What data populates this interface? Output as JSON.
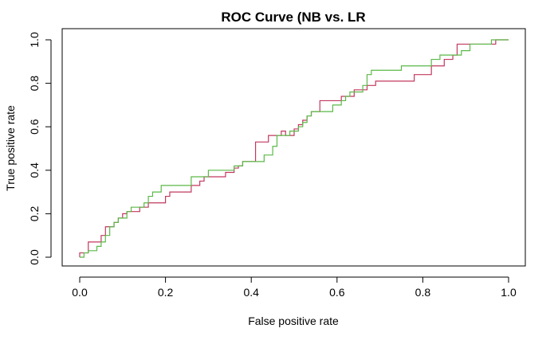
{
  "chart_data": {
    "type": "line",
    "title": "ROC Curve (NB vs. LR",
    "xlabel": "False positive rate",
    "ylabel": "True positive rate",
    "xlim": [
      0,
      1
    ],
    "ylim": [
      0,
      1
    ],
    "xticks": [
      0.0,
      0.2,
      0.4,
      0.6,
      0.8,
      1.0
    ],
    "xtick_labels": [
      "0.0",
      "0.2",
      "0.4",
      "0.6",
      "0.8",
      "1.0"
    ],
    "yticks": [
      0.0,
      0.2,
      0.4,
      0.6,
      0.8,
      1.0
    ],
    "ytick_labels": [
      "0.0",
      "0.2",
      "0.4",
      "0.6",
      "0.8",
      "1.0"
    ],
    "grid": false,
    "legend": "none",
    "series": [
      {
        "color": "#c2385f",
        "points": [
          [
            0.0,
            0.0
          ],
          [
            0.0,
            0.02
          ],
          [
            0.02,
            0.02
          ],
          [
            0.02,
            0.07
          ],
          [
            0.05,
            0.07
          ],
          [
            0.05,
            0.1
          ],
          [
            0.06,
            0.1
          ],
          [
            0.06,
            0.14
          ],
          [
            0.08,
            0.14
          ],
          [
            0.08,
            0.16
          ],
          [
            0.09,
            0.16
          ],
          [
            0.09,
            0.18
          ],
          [
            0.1,
            0.18
          ],
          [
            0.1,
            0.2
          ],
          [
            0.11,
            0.2
          ],
          [
            0.11,
            0.21
          ],
          [
            0.14,
            0.21
          ],
          [
            0.14,
            0.23
          ],
          [
            0.16,
            0.23
          ],
          [
            0.16,
            0.25
          ],
          [
            0.2,
            0.25
          ],
          [
            0.2,
            0.28
          ],
          [
            0.21,
            0.28
          ],
          [
            0.21,
            0.3
          ],
          [
            0.26,
            0.3
          ],
          [
            0.26,
            0.33
          ],
          [
            0.28,
            0.33
          ],
          [
            0.28,
            0.35
          ],
          [
            0.29,
            0.35
          ],
          [
            0.29,
            0.37
          ],
          [
            0.34,
            0.37
          ],
          [
            0.34,
            0.39
          ],
          [
            0.36,
            0.39
          ],
          [
            0.36,
            0.41
          ],
          [
            0.37,
            0.41
          ],
          [
            0.37,
            0.42
          ],
          [
            0.38,
            0.42
          ],
          [
            0.38,
            0.44
          ],
          [
            0.41,
            0.44
          ],
          [
            0.41,
            0.53
          ],
          [
            0.44,
            0.53
          ],
          [
            0.44,
            0.56
          ],
          [
            0.47,
            0.56
          ],
          [
            0.47,
            0.58
          ],
          [
            0.48,
            0.58
          ],
          [
            0.48,
            0.56
          ],
          [
            0.5,
            0.56
          ],
          [
            0.5,
            0.59
          ],
          [
            0.51,
            0.59
          ],
          [
            0.51,
            0.61
          ],
          [
            0.52,
            0.61
          ],
          [
            0.52,
            0.63
          ],
          [
            0.53,
            0.63
          ],
          [
            0.53,
            0.65
          ],
          [
            0.54,
            0.65
          ],
          [
            0.54,
            0.67
          ],
          [
            0.56,
            0.67
          ],
          [
            0.56,
            0.72
          ],
          [
            0.61,
            0.72
          ],
          [
            0.61,
            0.74
          ],
          [
            0.64,
            0.74
          ],
          [
            0.64,
            0.77
          ],
          [
            0.67,
            0.77
          ],
          [
            0.67,
            0.79
          ],
          [
            0.69,
            0.79
          ],
          [
            0.69,
            0.81
          ],
          [
            0.78,
            0.81
          ],
          [
            0.78,
            0.84
          ],
          [
            0.82,
            0.84
          ],
          [
            0.82,
            0.88
          ],
          [
            0.85,
            0.88
          ],
          [
            0.85,
            0.91
          ],
          [
            0.87,
            0.91
          ],
          [
            0.87,
            0.93
          ],
          [
            0.88,
            0.93
          ],
          [
            0.88,
            0.98
          ],
          [
            0.97,
            0.98
          ],
          [
            0.97,
            1.0
          ],
          [
            1.0,
            1.0
          ]
        ]
      },
      {
        "color": "#5ab947",
        "points": [
          [
            0.0,
            0.0
          ],
          [
            0.01,
            0.0
          ],
          [
            0.01,
            0.02
          ],
          [
            0.02,
            0.02
          ],
          [
            0.02,
            0.03
          ],
          [
            0.04,
            0.03
          ],
          [
            0.04,
            0.05
          ],
          [
            0.05,
            0.05
          ],
          [
            0.05,
            0.07
          ],
          [
            0.06,
            0.07
          ],
          [
            0.06,
            0.1
          ],
          [
            0.07,
            0.1
          ],
          [
            0.07,
            0.14
          ],
          [
            0.08,
            0.14
          ],
          [
            0.08,
            0.16
          ],
          [
            0.09,
            0.16
          ],
          [
            0.09,
            0.18
          ],
          [
            0.11,
            0.18
          ],
          [
            0.11,
            0.21
          ],
          [
            0.12,
            0.21
          ],
          [
            0.12,
            0.23
          ],
          [
            0.15,
            0.23
          ],
          [
            0.15,
            0.25
          ],
          [
            0.16,
            0.25
          ],
          [
            0.16,
            0.28
          ],
          [
            0.17,
            0.28
          ],
          [
            0.17,
            0.3
          ],
          [
            0.19,
            0.3
          ],
          [
            0.19,
            0.33
          ],
          [
            0.26,
            0.33
          ],
          [
            0.26,
            0.37
          ],
          [
            0.3,
            0.37
          ],
          [
            0.3,
            0.4
          ],
          [
            0.36,
            0.4
          ],
          [
            0.36,
            0.42
          ],
          [
            0.38,
            0.42
          ],
          [
            0.38,
            0.44
          ],
          [
            0.43,
            0.44
          ],
          [
            0.43,
            0.47
          ],
          [
            0.45,
            0.47
          ],
          [
            0.45,
            0.51
          ],
          [
            0.46,
            0.51
          ],
          [
            0.46,
            0.56
          ],
          [
            0.49,
            0.56
          ],
          [
            0.49,
            0.58
          ],
          [
            0.51,
            0.58
          ],
          [
            0.51,
            0.6
          ],
          [
            0.52,
            0.6
          ],
          [
            0.52,
            0.62
          ],
          [
            0.53,
            0.62
          ],
          [
            0.53,
            0.65
          ],
          [
            0.54,
            0.65
          ],
          [
            0.54,
            0.67
          ],
          [
            0.59,
            0.67
          ],
          [
            0.59,
            0.7
          ],
          [
            0.61,
            0.7
          ],
          [
            0.61,
            0.72
          ],
          [
            0.62,
            0.72
          ],
          [
            0.62,
            0.74
          ],
          [
            0.63,
            0.74
          ],
          [
            0.63,
            0.76
          ],
          [
            0.66,
            0.76
          ],
          [
            0.66,
            0.79
          ],
          [
            0.67,
            0.79
          ],
          [
            0.67,
            0.84
          ],
          [
            0.68,
            0.84
          ],
          [
            0.68,
            0.86
          ],
          [
            0.75,
            0.86
          ],
          [
            0.75,
            0.88
          ],
          [
            0.82,
            0.88
          ],
          [
            0.82,
            0.91
          ],
          [
            0.84,
            0.91
          ],
          [
            0.84,
            0.93
          ],
          [
            0.89,
            0.93
          ],
          [
            0.89,
            0.95
          ],
          [
            0.91,
            0.95
          ],
          [
            0.91,
            0.98
          ],
          [
            0.96,
            0.98
          ],
          [
            0.96,
            1.0
          ],
          [
            1.0,
            1.0
          ]
        ]
      }
    ]
  }
}
